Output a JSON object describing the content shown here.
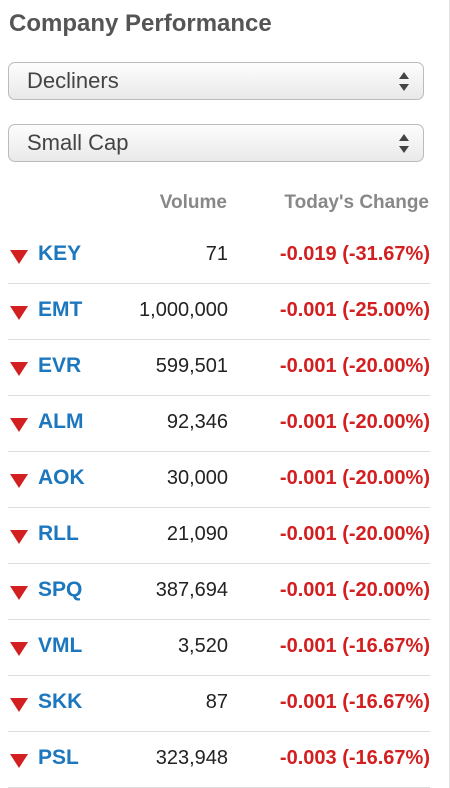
{
  "header": {
    "title": "Company Performance"
  },
  "filters": {
    "list": "Decliners",
    "size": "Small Cap"
  },
  "table": {
    "columns": [
      "Volume",
      "Today's Change"
    ],
    "rows": [
      {
        "symbol": "KEY",
        "volume": "71",
        "change": "-0.019 (-31.67%)"
      },
      {
        "symbol": "EMT",
        "volume": "1,000,000",
        "change": "-0.001 (-25.00%)"
      },
      {
        "symbol": "EVR",
        "volume": "599,501",
        "change": "-0.001 (-20.00%)"
      },
      {
        "symbol": "ALM",
        "volume": "92,346",
        "change": "-0.001 (-20.00%)"
      },
      {
        "symbol": "AOK",
        "volume": "30,000",
        "change": "-0.001 (-20.00%)"
      },
      {
        "symbol": "RLL",
        "volume": "21,090",
        "change": "-0.001 (-20.00%)"
      },
      {
        "symbol": "SPQ",
        "volume": "387,694",
        "change": "-0.001 (-20.00%)"
      },
      {
        "symbol": "VML",
        "volume": "3,520",
        "change": "-0.001 (-16.67%)"
      },
      {
        "symbol": "SKK",
        "volume": "87",
        "change": "-0.001 (-16.67%)"
      },
      {
        "symbol": "PSL",
        "volume": "323,948",
        "change": "-0.003 (-16.67%)"
      }
    ]
  }
}
